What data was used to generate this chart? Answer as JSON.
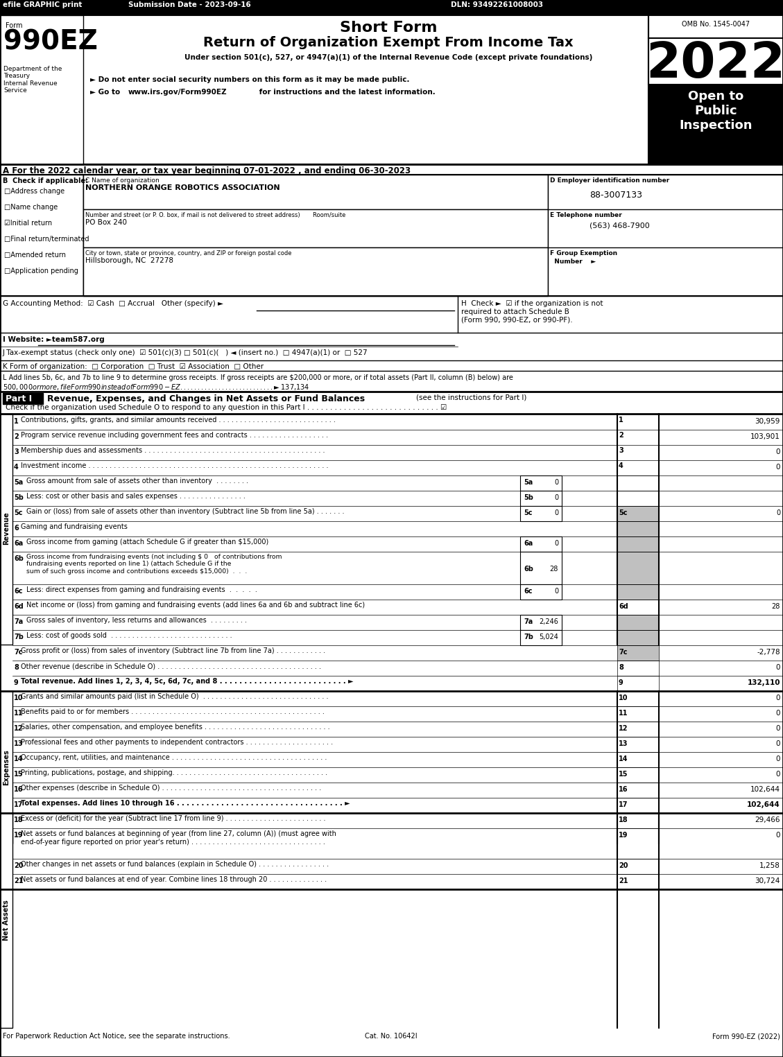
{
  "efile_text": "efile GRAPHIC print",
  "submission_date": "Submission Date - 2023-09-16",
  "dln": "DLN: 93492261008003",
  "form_number": "990EZ",
  "short_form_title": "Short Form",
  "main_title": "Return of Organization Exempt From Income Tax",
  "subtitle": "Under section 501(c), 527, or 4947(a)(1) of the Internal Revenue Code (except private foundations)",
  "year": "2022",
  "omb": "OMB No. 1545-0047",
  "open_to_public": "Open to\nPublic\nInspection",
  "dept_label": "Department of the\nTreasury\nInternal Revenue\nService",
  "bullet1": "► Do not enter social security numbers on this form as it may be made public.",
  "bullet2": "► Go to www.irs.gov/Form990EZ for instructions and the latest information.",
  "line_a": "A For the 2022 calendar year, or tax year beginning 07-01-2022 , and ending 06-30-2023",
  "check_if_applicable": "B  Check if applicable:",
  "checkboxes_b": [
    {
      "label": "Address change",
      "checked": false
    },
    {
      "label": "Name change",
      "checked": false
    },
    {
      "label": "Initial return",
      "checked": true
    },
    {
      "label": "Final return/terminated",
      "checked": false
    },
    {
      "label": "Amended return",
      "checked": false
    },
    {
      "label": "Application pending",
      "checked": false
    }
  ],
  "org_name_label": "C Name of organization",
  "org_name": "NORTHERN ORANGE ROBOTICS ASSOCIATION",
  "street_label": "Number and street (or P. O. box, if mail is not delivered to street address)       Room/suite",
  "street": "PO Box 240",
  "city_label": "City or town, state or province, country, and ZIP or foreign postal code",
  "city": "Hillsborough, NC  27278",
  "ein_label": "D Employer identification number",
  "ein": "88-3007133",
  "phone_label": "E Telephone number",
  "phone": "(563) 468-7900",
  "group_label": "F Group Exemption\n  Number    ►",
  "acct_method": "G Accounting Method:  ☑ Cash  □ Accrual   Other (specify) ►",
  "h_check": "H  Check ►  ☑ if the organization is not\nrequired to attach Schedule B\n(Form 990, 990-EZ, or 990-PF).",
  "website_label": "I Website: ►team587.org",
  "tax_exempt": "J Tax-exempt status (check only one)  ☑ 501(c)(3) □ 501(c)(   ) ◄ (insert no.)  □ 4947(a)(1) or  □ 527",
  "form_org": "K Form of organization:  □ Corporation  □ Trust  ☑ Association  □ Other",
  "line_l": "L Add lines 5b, 6c, and 7b to line 9 to determine gross receipts. If gross receipts are $200,000 or more, or if total assets (Part II, column (B) below) are\n$500,000 or more, file Form 990 instead of Form 990-EZ . . . . . . . . . . . . . . . . . . . . . . . . . . . ► $ 137,134",
  "part1_header": "Part I",
  "part1_title": "Revenue, Expenses, and Changes in Net Assets or Fund Balances",
  "part1_subtitle": "(see the instructions for Part I)",
  "part1_check": "Check if the organization used Schedule O to respond to any question in this Part I . . . . . . . . . . . . . . . . . . . . . . . . . . . . . ☑",
  "revenue_label": "Revenue",
  "expenses_label": "Expenses",
  "net_assets_label": "Net Assets",
  "lines": [
    {
      "num": "1",
      "desc": "Contributions, gifts, grants, and similar amounts received . . . . . . . . . . . . . . . . . . . . . . . . . . . .",
      "linenum": "1",
      "value": "30,959",
      "shaded": false
    },
    {
      "num": "2",
      "desc": "Program service revenue including government fees and contracts . . . . . . . . . . . . . . . . . . .",
      "linenum": "2",
      "value": "103,901",
      "shaded": false
    },
    {
      "num": "3",
      "desc": "Membership dues and assessments . . . . . . . . . . . . . . . . . . . . . . . . . . . . . . . . . . . . . . . . . . .",
      "linenum": "3",
      "value": "0",
      "shaded": false
    },
    {
      "num": "4",
      "desc": "Investment income . . . . . . . . . . . . . . . . . . . . . . . . . . . . . . . . . . . . . . . . . . . . . . . . . . . . . . . . .",
      "linenum": "4",
      "value": "0",
      "shaded": false
    },
    {
      "num": "5a",
      "desc": "Gross amount from sale of assets other than inventory  . . . . . . . .  ",
      "linenum": "5a",
      "value": "0",
      "shaded": false,
      "sub": true
    },
    {
      "num": "5b",
      "desc": "Less: cost or other basis and sales expenses . . . . . . . . . . . . . . . .",
      "linenum": "5b",
      "value": "0",
      "shaded": false,
      "sub": true
    },
    {
      "num": "5c",
      "desc": "Gain or (loss) from sale of assets other than inventory (Subtract line 5b from line 5a) . . . . . . .",
      "linenum": "5c",
      "value": "0",
      "shaded": true
    },
    {
      "num": "6",
      "desc": "Gaming and fundraising events",
      "linenum": "",
      "value": "",
      "shaded": false,
      "header": true
    },
    {
      "num": "6a",
      "desc": "Gross income from gaming (attach Schedule G if greater than $15,000)",
      "linenum": "6a",
      "value": "0",
      "shaded": false,
      "sub": true
    },
    {
      "num": "6b",
      "desc": "Gross income from fundraising events (not including $ 0   of contributions from\nfundraising events reported on line 1) (attach Schedule G if the\nsum of such gross income and contributions exceeds $15,000)  .  .",
      "linenum": "6b",
      "value": "28",
      "shaded": false,
      "sub": true
    },
    {
      "num": "6c",
      "desc": "Less: direct expenses from gaming and fundraising events  .  .  .  .  .",
      "linenum": "6c",
      "value": "0",
      "shaded": false,
      "sub": true
    },
    {
      "num": "6d",
      "desc": "Net income or (loss) from gaming and fundraising events (add lines 6a and 6b and subtract line 6c)",
      "linenum": "6d",
      "value": "28",
      "shaded": true
    },
    {
      "num": "7a",
      "desc": "Gross sales of inventory, less returns and allowances  . . . . . . . . .",
      "linenum": "7a",
      "value": "2,246",
      "shaded": false,
      "sub": true
    },
    {
      "num": "7b",
      "desc": "Less: cost of goods sold  . . . . . . . . . . . . . . . . . . . . . . . . . . . . .",
      "linenum": "7b",
      "value": "5,024",
      "shaded": false,
      "sub": true
    },
    {
      "num": "7c",
      "desc": "Gross profit or (loss) from sales of inventory (Subtract line 7b from line 7a) . . . . . . . . . . . .",
      "linenum": "7c",
      "value": "-2,778",
      "shaded": true
    },
    {
      "num": "8",
      "desc": "Other revenue (describe in Schedule O) . . . . . . . . . . . . . . . . . . . . . . . . . . . . . . . . . . . . . . .",
      "linenum": "8",
      "value": "0",
      "shaded": false
    },
    {
      "num": "9",
      "desc": "Total revenue. Add lines 1, 2, 3, 4, 5c, 6d, 7c, and 8 . . . . . . . . . . . . . . . . . . . . . . . . . . ►",
      "linenum": "9",
      "value": "132,110",
      "shaded": false,
      "bold": true
    }
  ],
  "expense_lines": [
    {
      "num": "10",
      "desc": "Grants and similar amounts paid (list in Schedule O)  . . . . . . . . . . . . . . . . . . . . . . . . . . . . . .",
      "linenum": "10",
      "value": "0"
    },
    {
      "num": "11",
      "desc": "Benefits paid to or for members . . . . . . . . . . . . . . . . . . . . . . . . . . . . . . . . . . . . . . . . . . . . . .",
      "linenum": "11",
      "value": "0"
    },
    {
      "num": "12",
      "desc": "Salaries, other compensation, and employee benefits . . . . . . . . . . . . . . . . . . . . . . . . . . . . . .",
      "linenum": "12",
      "value": "0"
    },
    {
      "num": "13",
      "desc": "Professional fees and other payments to independent contractors . . . . . . . . . . . . . . . . . . . . .",
      "linenum": "13",
      "value": "0"
    },
    {
      "num": "14",
      "desc": "Occupancy, rent, utilities, and maintenance . . . . . . . . . . . . . . . . . . . . . . . . . . . . . . . . . . . . .",
      "linenum": "14",
      "value": "0"
    },
    {
      "num": "15",
      "desc": "Printing, publications, postage, and shipping. . . . . . . . . . . . . . . . . . . . . . . . . . . . . . . . . . . . .",
      "linenum": "15",
      "value": "0"
    },
    {
      "num": "16",
      "desc": "Other expenses (describe in Schedule O) . . . . . . . . . . . . . . . . . . . . . . . . . . . . . . . . . . . . . .",
      "linenum": "16",
      "value": "102,644"
    },
    {
      "num": "17",
      "desc": "Total expenses. Add lines 10 through 16 . . . . . . . . . . . . . . . . . . . . . . . . . . . . . . . . . . ►",
      "linenum": "17",
      "value": "102,644",
      "bold": true
    }
  ],
  "net_lines": [
    {
      "num": "18",
      "desc": "Excess or (deficit) for the year (Subtract line 17 from line 9) . . . . . . . . . . . . . . . . . . . . . . . .",
      "linenum": "18",
      "value": "29,466"
    },
    {
      "num": "19",
      "desc": "Net assets or fund balances at beginning of year (from line 27, column (A)) (must agree with\nend-of-year figure reported on prior year's return) . . . . . . . . . . . . . . . . . . . . . . . . . . . . . . . .",
      "linenum": "19",
      "value": "0"
    },
    {
      "num": "20",
      "desc": "Other changes in net assets or fund balances (explain in Schedule O) . . . . . . . . . . . . . . . . .",
      "linenum": "20",
      "value": "1,258"
    },
    {
      "num": "21",
      "desc": "Net assets or fund balances at end of year. Combine lines 18 through 20 . . . . . . . . . . . . . .",
      "linenum": "21",
      "value": "30,724"
    }
  ],
  "footer_left": "For Paperwork Reduction Act Notice, see the separate instructions.",
  "footer_cat": "Cat. No. 10642I",
  "footer_right": "Form 990-EZ (2022)"
}
